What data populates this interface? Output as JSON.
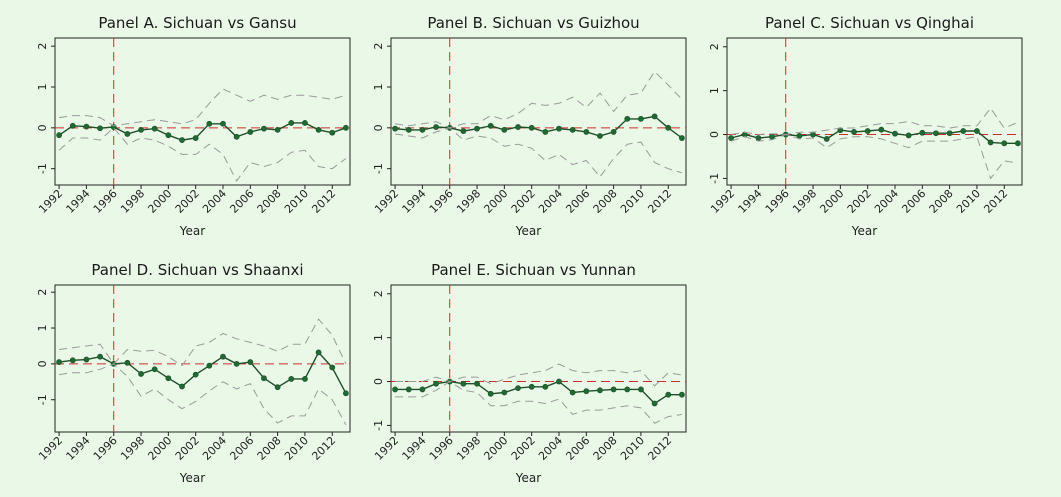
{
  "chart_data": [
    {
      "type": "line",
      "title": "Panel A. Sichuan vs Gansu",
      "xlabel": "Year",
      "ylabel": "",
      "x": [
        1992,
        1993,
        1994,
        1995,
        1996,
        1997,
        1998,
        1999,
        2000,
        2001,
        2002,
        2003,
        2004,
        2005,
        2006,
        2007,
        2008,
        2009,
        2010,
        2011,
        2012,
        2013
      ],
      "xticks": [
        "1992",
        "1994",
        "1996",
        "1998",
        "2000",
        "2002",
        "2004",
        "2006",
        "2008",
        "2010",
        "2012"
      ],
      "yticks": [
        "-1",
        "0",
        "1",
        "2"
      ],
      "ylim": [
        -1.4,
        2.2
      ],
      "reference_x": 1996,
      "reference_y": 0,
      "series": [
        {
          "role": "estimate",
          "values": [
            -0.18,
            0.05,
            0.03,
            -0.01,
            0.02,
            -0.15,
            -0.05,
            -0.02,
            -0.18,
            -0.3,
            -0.25,
            0.1,
            0.1,
            -0.22,
            -0.1,
            -0.02,
            -0.05,
            0.12,
            0.12,
            -0.05,
            -0.12,
            0.0
          ]
        },
        {
          "role": "upper",
          "values": [
            0.25,
            0.3,
            0.3,
            0.25,
            0.05,
            0.1,
            0.15,
            0.2,
            0.15,
            0.1,
            0.2,
            0.6,
            0.95,
            0.8,
            0.65,
            0.8,
            0.7,
            0.8,
            0.8,
            0.75,
            0.7,
            0.8
          ]
        },
        {
          "role": "lower",
          "values": [
            -0.55,
            -0.25,
            -0.25,
            -0.3,
            0.0,
            -0.4,
            -0.25,
            -0.3,
            -0.45,
            -0.65,
            -0.65,
            -0.4,
            -0.65,
            -1.3,
            -0.85,
            -0.95,
            -0.85,
            -0.6,
            -0.55,
            -0.95,
            -1.0,
            -0.75
          ]
        }
      ]
    },
    {
      "type": "line",
      "title": "Panel B. Sichuan vs Guizhou",
      "xlabel": "Year",
      "ylabel": "",
      "x": [
        1992,
        1993,
        1994,
        1995,
        1996,
        1997,
        1998,
        1999,
        2000,
        2001,
        2002,
        2003,
        2004,
        2005,
        2006,
        2007,
        2008,
        2009,
        2010,
        2011,
        2012,
        2013
      ],
      "xticks": [
        "1992",
        "1994",
        "1996",
        "1998",
        "2000",
        "2002",
        "2004",
        "2006",
        "2008",
        "2010",
        "2012"
      ],
      "yticks": [
        "-1",
        "0",
        "1",
        "2"
      ],
      "ylim": [
        -1.4,
        2.2
      ],
      "reference_x": 1996,
      "reference_y": 0,
      "series": [
        {
          "role": "estimate",
          "values": [
            -0.02,
            -0.05,
            -0.05,
            0.02,
            0.0,
            -0.08,
            -0.02,
            0.05,
            -0.05,
            0.02,
            0.0,
            -0.1,
            -0.02,
            -0.05,
            -0.1,
            -0.2,
            -0.1,
            0.22,
            0.22,
            0.28,
            0.0,
            -0.25
          ]
        },
        {
          "role": "upper",
          "values": [
            0.1,
            0.05,
            0.1,
            0.15,
            0.0,
            0.1,
            0.1,
            0.3,
            0.2,
            0.35,
            0.6,
            0.55,
            0.6,
            0.75,
            0.5,
            0.85,
            0.4,
            0.8,
            0.85,
            1.38,
            1.05,
            0.7
          ]
        },
        {
          "role": "lower",
          "values": [
            -0.15,
            -0.2,
            -0.25,
            -0.1,
            0.0,
            -0.3,
            -0.2,
            -0.25,
            -0.45,
            -0.4,
            -0.5,
            -0.8,
            -0.65,
            -0.9,
            -0.8,
            -1.2,
            -0.75,
            -0.4,
            -0.35,
            -0.85,
            -1.0,
            -1.1
          ]
        }
      ]
    },
    {
      "type": "line",
      "title": "Panel C. Sichuan vs Qinghai",
      "xlabel": "Year",
      "ylabel": "",
      "x": [
        1992,
        1993,
        1994,
        1995,
        1996,
        1997,
        1998,
        1999,
        2000,
        2001,
        2002,
        2003,
        2004,
        2005,
        2006,
        2007,
        2008,
        2009,
        2010,
        2011,
        2012,
        2013
      ],
      "xticks": [
        "1992",
        "1994",
        "1996",
        "1998",
        "2000",
        "2002",
        "2004",
        "2006",
        "2008",
        "2010",
        "2012"
      ],
      "yticks": [
        "-1",
        "0",
        "1",
        "2"
      ],
      "ylim": [
        -1.15,
        2.2
      ],
      "reference_x": 1996,
      "reference_y": 0,
      "series": [
        {
          "role": "estimate",
          "values": [
            -0.08,
            0.0,
            -0.08,
            -0.05,
            0.0,
            -0.03,
            0.0,
            -0.1,
            0.1,
            0.06,
            0.08,
            0.11,
            0.02,
            -0.02,
            0.04,
            0.03,
            0.03,
            0.08,
            0.08,
            -0.18,
            -0.2,
            -0.2
          ]
        },
        {
          "role": "upper",
          "values": [
            0.0,
            0.05,
            0.0,
            0.02,
            0.0,
            0.05,
            0.05,
            0.1,
            0.15,
            0.15,
            0.2,
            0.25,
            0.25,
            0.3,
            0.2,
            0.2,
            0.15,
            0.2,
            0.2,
            0.6,
            0.15,
            0.28
          ]
        },
        {
          "role": "lower",
          "values": [
            -0.15,
            -0.05,
            -0.15,
            -0.12,
            0.0,
            -0.1,
            -0.08,
            -0.3,
            -0.1,
            -0.05,
            -0.05,
            -0.1,
            -0.2,
            -0.3,
            -0.15,
            -0.15,
            -0.15,
            -0.1,
            -0.05,
            -1.0,
            -0.6,
            -0.65
          ]
        }
      ]
    },
    {
      "type": "line",
      "title": "Panel D. Sichuan vs Shaanxi",
      "xlabel": "Year",
      "ylabel": "",
      "x": [
        1992,
        1993,
        1994,
        1995,
        1996,
        1997,
        1998,
        1999,
        2000,
        2001,
        2002,
        2003,
        2004,
        2005,
        2006,
        2007,
        2008,
        2009,
        2010,
        2011,
        2012,
        2013
      ],
      "xticks": [
        "1992",
        "1994",
        "1996",
        "1998",
        "2000",
        "2002",
        "2004",
        "2006",
        "2008",
        "2010",
        "2012"
      ],
      "yticks": [
        "-1",
        "0",
        "1",
        "2"
      ],
      "ylim": [
        -1.9,
        2.2
      ],
      "reference_x": 1996,
      "reference_y": 0,
      "series": [
        {
          "role": "estimate",
          "values": [
            0.05,
            0.1,
            0.12,
            0.2,
            0.0,
            0.03,
            -0.28,
            -0.15,
            -0.4,
            -0.63,
            -0.3,
            -0.05,
            0.2,
            0.0,
            0.05,
            -0.4,
            -0.65,
            -0.42,
            -0.42,
            0.32,
            -0.1,
            -0.82
          ]
        },
        {
          "role": "upper",
          "values": [
            0.4,
            0.45,
            0.5,
            0.55,
            0.0,
            0.4,
            0.35,
            0.38,
            0.2,
            -0.05,
            0.5,
            0.6,
            0.85,
            0.7,
            0.6,
            0.5,
            0.35,
            0.55,
            0.55,
            1.25,
            0.8,
            0.0
          ]
        },
        {
          "role": "lower",
          "values": [
            -0.3,
            -0.25,
            -0.25,
            -0.15,
            0.0,
            -0.35,
            -0.9,
            -0.7,
            -1.0,
            -1.25,
            -1.05,
            -0.75,
            -0.5,
            -0.7,
            -0.55,
            -1.25,
            -1.65,
            -1.45,
            -1.45,
            -0.7,
            -1.0,
            -1.7
          ]
        }
      ]
    },
    {
      "type": "line",
      "title": "Panel E. Sichuan vs Yunnan",
      "xlabel": "Year",
      "ylabel": "",
      "x": [
        1992,
        1993,
        1994,
        1995,
        1996,
        1997,
        1998,
        1999,
        2000,
        2001,
        2002,
        2003,
        2004,
        2005,
        2006,
        2007,
        2008,
        2009,
        2010,
        2011,
        2012,
        2013
      ],
      "xticks": [
        "1992",
        "1994",
        "1996",
        "1998",
        "2000",
        "2002",
        "2004",
        "2006",
        "2008",
        "2010",
        "2012"
      ],
      "yticks": [
        "-1",
        "0",
        "1",
        "2"
      ],
      "ylim": [
        -1.15,
        2.2
      ],
      "reference_x": 1996,
      "reference_y": 0,
      "series": [
        {
          "role": "estimate",
          "values": [
            -0.18,
            -0.18,
            -0.18,
            -0.05,
            0.0,
            -0.05,
            -0.05,
            -0.28,
            -0.25,
            -0.15,
            -0.12,
            -0.12,
            0.0,
            -0.25,
            -0.22,
            -0.2,
            -0.18,
            -0.18,
            -0.18,
            -0.5,
            -0.3,
            -0.3
          ]
        },
        {
          "role": "upper",
          "values": [
            0.0,
            0.0,
            0.0,
            0.1,
            0.0,
            0.1,
            0.1,
            -0.05,
            0.05,
            0.15,
            0.2,
            0.25,
            0.4,
            0.25,
            0.2,
            0.25,
            0.25,
            0.2,
            0.25,
            -0.1,
            0.2,
            0.15
          ]
        },
        {
          "role": "lower",
          "values": [
            -0.35,
            -0.35,
            -0.35,
            -0.2,
            0.0,
            -0.2,
            -0.25,
            -0.55,
            -0.55,
            -0.45,
            -0.45,
            -0.5,
            -0.4,
            -0.75,
            -0.65,
            -0.65,
            -0.6,
            -0.55,
            -0.6,
            -0.95,
            -0.8,
            -0.75
          ]
        }
      ]
    }
  ]
}
